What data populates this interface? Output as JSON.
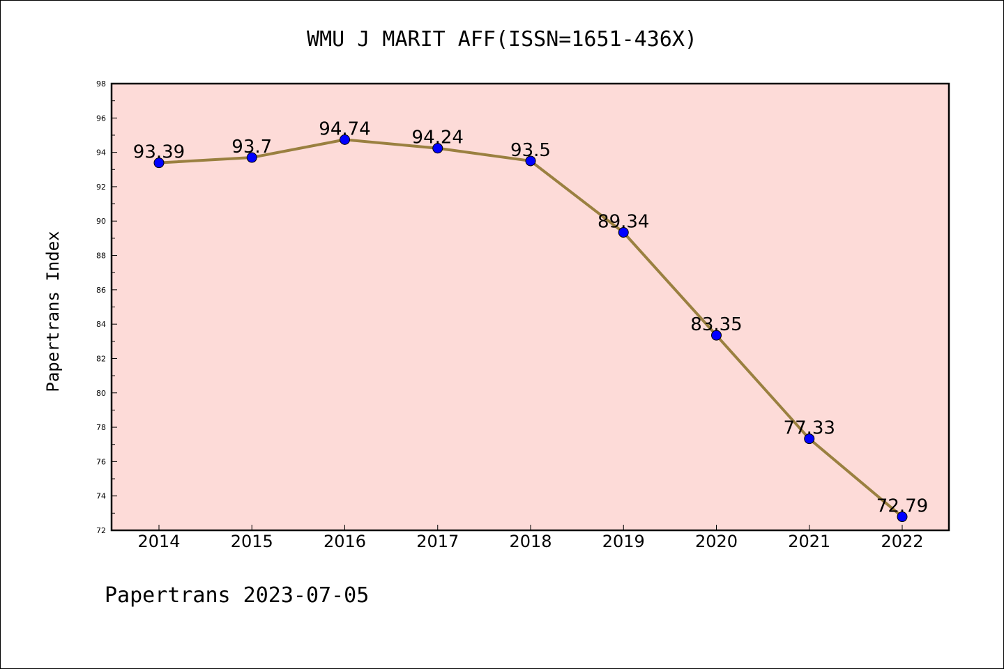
{
  "chart_data": {
    "type": "line",
    "title": "WMU J MARIT AFF(ISSN=1651-436X)",
    "xlabel": "",
    "ylabel": "Papertrans Index",
    "categories": [
      "2014",
      "2015",
      "2016",
      "2017",
      "2018",
      "2019",
      "2020",
      "2021",
      "2022"
    ],
    "series": [
      {
        "values": [
          93.39,
          93.7,
          94.74,
          94.24,
          93.5,
          89.34,
          83.35,
          77.33,
          72.79
        ],
        "labels": [
          "93.39",
          "93.7",
          "94.74",
          "94.24",
          "93.5",
          "89.34",
          "83.35",
          "77.33",
          "72.79"
        ]
      }
    ],
    "ylim": [
      72,
      98
    ],
    "yticks": [
      "72",
      "74",
      "76",
      "78",
      "80",
      "82",
      "84",
      "86",
      "88",
      "90",
      "92",
      "94",
      "96",
      "98"
    ],
    "grid": false,
    "colors": {
      "plot_background": "#fddbd8",
      "line": "#9a8040",
      "marker": "#0000ff"
    }
  },
  "footer": "Papertrans 2023-07-05"
}
